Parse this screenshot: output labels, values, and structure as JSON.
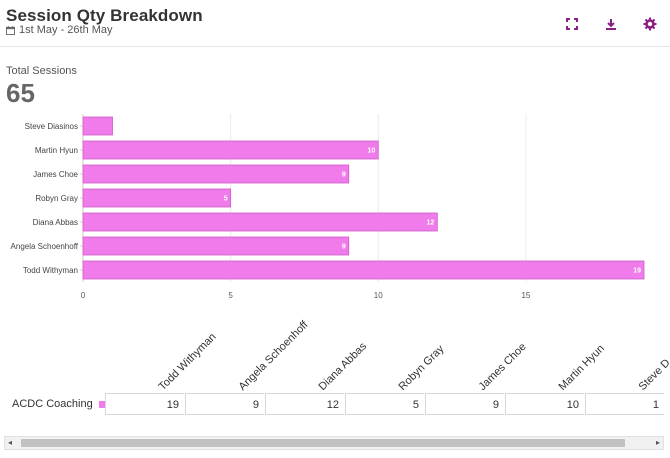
{
  "header": {
    "title": "Session Qty Breakdown",
    "date_range": "1st May - 26th May",
    "accent": "#8a1f86"
  },
  "summary": {
    "label": "Total Sessions",
    "value": "65"
  },
  "chart_data": {
    "type": "bar",
    "orientation": "horizontal",
    "categories": [
      "Steve Diasinos",
      "Martin Hyun",
      "James Choe",
      "Robyn Gray",
      "Diana Abbas",
      "Angela Schoenhoff",
      "Todd Withyman"
    ],
    "values": [
      1,
      10,
      9,
      5,
      12,
      9,
      19
    ],
    "data_labels": [
      "",
      "10",
      "9",
      "5",
      "12",
      "9",
      "19"
    ],
    "xlim": [
      0,
      19
    ],
    "xticks": [
      0,
      5,
      10,
      15
    ],
    "grid": true,
    "bar_color": "#f07bea"
  },
  "table": {
    "columns": [
      "Todd Withyman",
      "Angela Schoenhoff",
      "Diana Abbas",
      "Robyn Gray",
      "James Choe",
      "Martin Hyun",
      "Steve D"
    ],
    "rows": [
      {
        "label": "ACDC Coaching",
        "values": [
          "19",
          "9",
          "12",
          "5",
          "9",
          "10",
          "1"
        ]
      }
    ]
  },
  "scrollbar": {
    "left_arrow": "◂",
    "right_arrow": "▸"
  },
  "icons": [
    "calendar-icon",
    "fullscreen-icon",
    "download-icon",
    "settings-icon"
  ]
}
